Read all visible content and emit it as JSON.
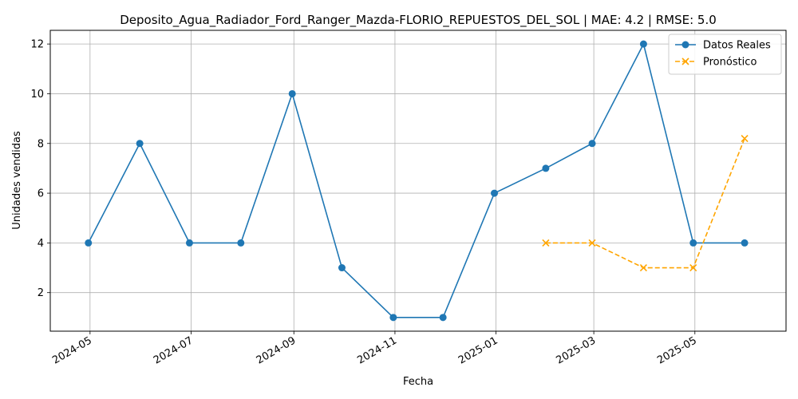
{
  "chart_data": {
    "type": "line",
    "title": "Deposito_Agua_Radiador_Ford_Ranger_Mazda-FLORIO_REPUESTOS_DEL_SOL | MAE: 4.2 | RMSE: 5.0",
    "xlabel": "Fecha",
    "ylabel": "Unidades vendidas",
    "grid": true,
    "legend_position": "top-right",
    "xlim": [
      "2024-04-07",
      "2025-06-25"
    ],
    "ylim": [
      0.45,
      12.55
    ],
    "x_ticks": [
      "2024-05",
      "2024-07",
      "2024-09",
      "2024-11",
      "2025-01",
      "2025-03",
      "2025-05"
    ],
    "y_ticks": [
      2,
      4,
      6,
      8,
      10,
      12
    ],
    "series": [
      {
        "name": "Datos Reales",
        "color": "#1f77b4",
        "marker": "circle",
        "style": "solid",
        "x": [
          "2024-04-30",
          "2024-05-31",
          "2024-06-30",
          "2024-07-31",
          "2024-08-31",
          "2024-09-30",
          "2024-10-31",
          "2024-11-30",
          "2024-12-31",
          "2025-01-31",
          "2025-02-28",
          "2025-03-31",
          "2025-04-30",
          "2025-05-31"
        ],
        "values": [
          4,
          8,
          4,
          4,
          10,
          3,
          1,
          1,
          6,
          7,
          8,
          12,
          4,
          4
        ]
      },
      {
        "name": "Pronóstico",
        "color": "#ffa500",
        "marker": "x",
        "style": "dashed",
        "x": [
          "2025-01-31",
          "2025-02-28",
          "2025-03-31",
          "2025-04-30",
          "2025-05-31"
        ],
        "values": [
          4,
          4,
          3,
          3,
          8.2
        ]
      }
    ]
  }
}
